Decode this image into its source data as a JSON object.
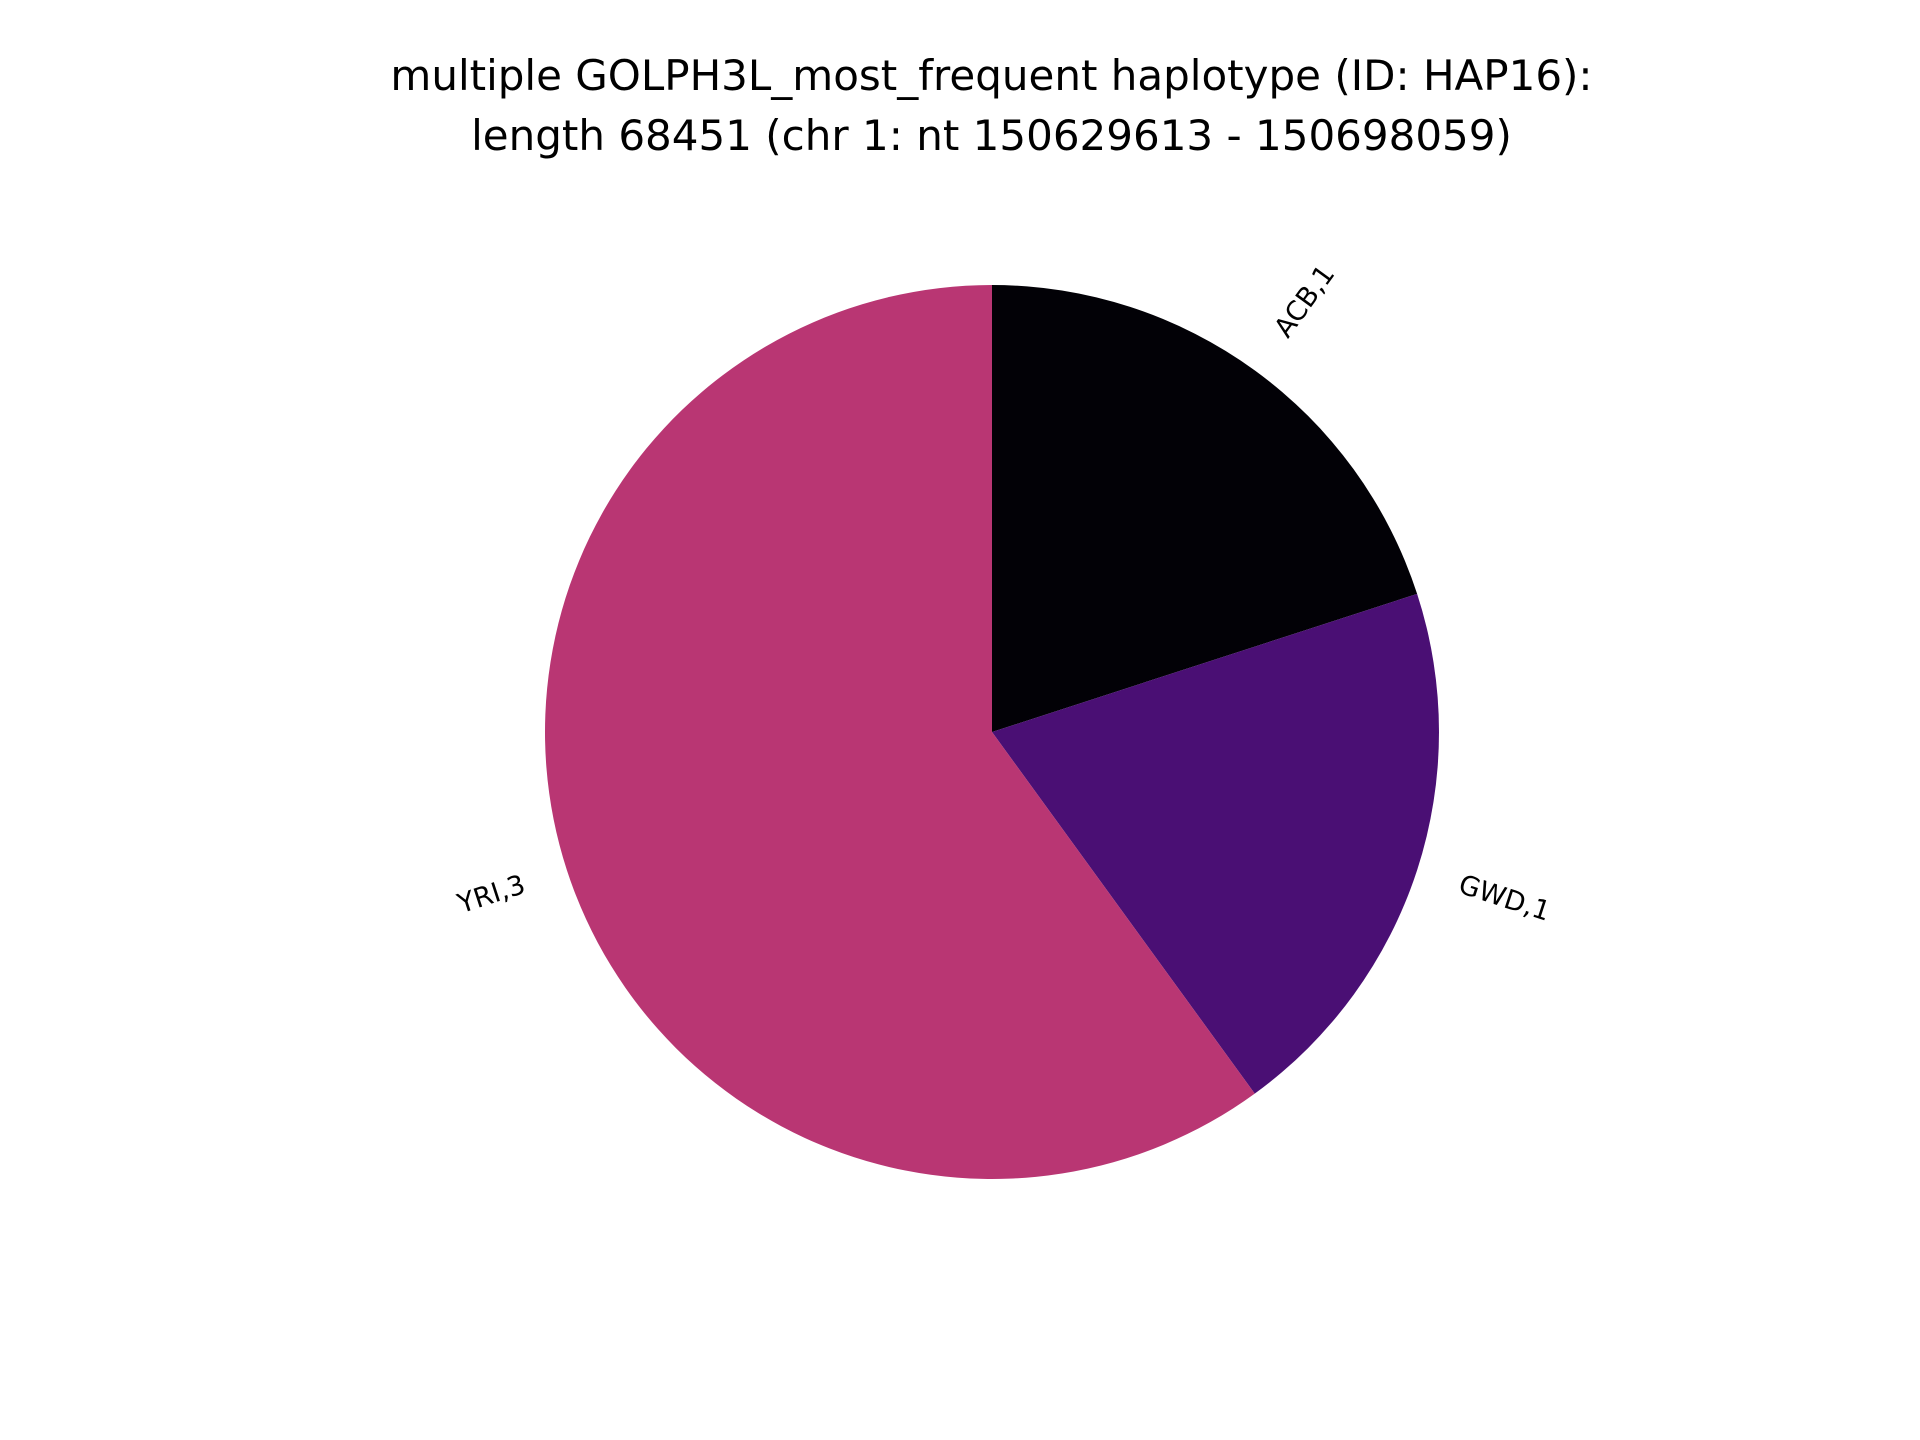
{
  "chart_data": {
    "type": "pie",
    "title": [
      "multiple GOLPH3L_most_frequent haplotype (ID: HAP16):",
      "length 68451 (chr 1: nt 150629613 - 150698059)"
    ],
    "slices": [
      {
        "label": "ACB,1",
        "value": 1,
        "color": "#020106"
      },
      {
        "label": "GWD,1",
        "value": 1,
        "color": "#4a0f74"
      },
      {
        "label": "YRI,3",
        "value": 3,
        "color": "#b93673"
      }
    ],
    "start_angle_deg": 90,
    "direction": "clockwise",
    "legend": "none"
  }
}
